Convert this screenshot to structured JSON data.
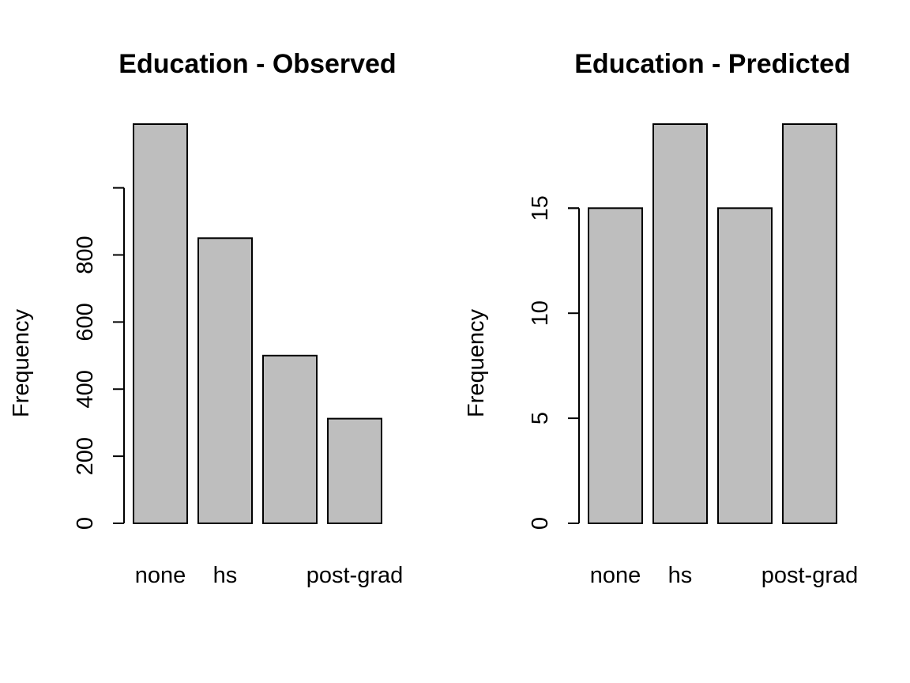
{
  "chart_data": [
    {
      "type": "bar",
      "title": "Education - Observed",
      "ylabel": "Frequency",
      "xlabel": "",
      "categories": [
        "none",
        "hs",
        "",
        "post-grad"
      ],
      "values": [
        1190,
        850,
        500,
        312
      ],
      "yticks": [
        0,
        200,
        400,
        600,
        800
      ],
      "axis_max": 1000,
      "ylim": [
        0,
        1190
      ],
      "bar_color": "#bebebe",
      "grid": false
    },
    {
      "type": "bar",
      "title": "Education - Predicted",
      "ylabel": "Frequency",
      "xlabel": "",
      "categories": [
        "none",
        "hs",
        "",
        "post-grad"
      ],
      "values": [
        15,
        19,
        15,
        19
      ],
      "yticks": [
        0,
        5,
        10,
        15
      ],
      "axis_max": 15,
      "ylim": [
        0,
        19
      ],
      "bar_color": "#bebebe",
      "grid": false
    }
  ]
}
